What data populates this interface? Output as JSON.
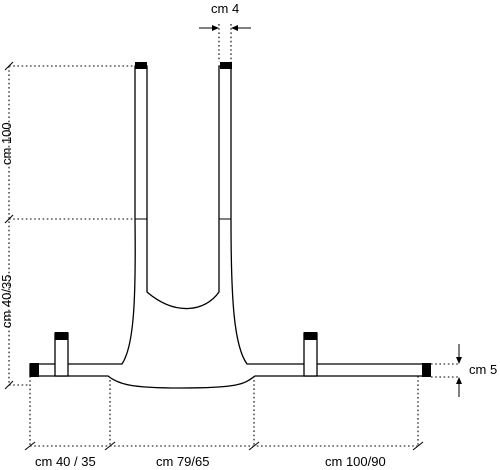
{
  "labels": {
    "top_width": "cm 4",
    "height_upper": "cm 100",
    "height_lower": "cm 40/35",
    "thickness_right": "cm 5",
    "bottom_left": "cm  40 / 35",
    "bottom_mid": "cm  79/65",
    "bottom_right": "cm  100/90"
  }
}
